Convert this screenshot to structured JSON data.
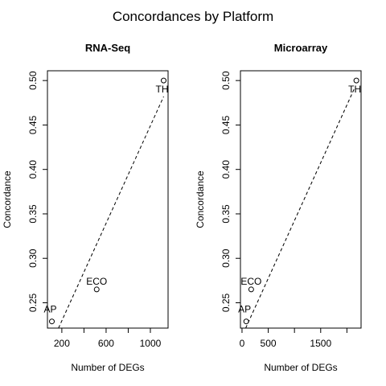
{
  "title": "Concordances by Platform",
  "chart_data": [
    {
      "type": "scatter",
      "title": "RNA-Seq",
      "xlabel": "Number of DEGs",
      "ylabel": "Concordance",
      "xlim": [
        70,
        1160
      ],
      "ylim": [
        0.2215,
        0.511
      ],
      "xticks": [
        200,
        400,
        600,
        800,
        1000
      ],
      "xtick_labels": [
        "200",
        "",
        "600",
        "",
        "1000"
      ],
      "yticks": [
        0.25,
        0.3,
        0.35,
        0.4,
        0.45,
        0.5
      ],
      "ytick_labels": [
        "0.25",
        "0.30",
        "0.35",
        "0.40",
        "0.45",
        "0.50"
      ],
      "grid": false,
      "points": [
        {
          "label": "AP",
          "x": 110,
          "y": 0.229
        },
        {
          "label": "ECO",
          "x": 515,
          "y": 0.265
        },
        {
          "label": "TH",
          "x": 1120,
          "y": 0.5
        }
      ],
      "fit_line": {
        "style": "dashed",
        "x": [
          170,
          1120
        ],
        "y": [
          0.2215,
          0.482
        ]
      }
    },
    {
      "type": "scatter",
      "title": "Microarray",
      "xlabel": "Number of DEGs",
      "ylabel": "Concordance",
      "xlim": [
        -30,
        2270
      ],
      "ylim": [
        0.2215,
        0.511
      ],
      "xticks": [
        0,
        500,
        1000,
        1500,
        2000
      ],
      "xtick_labels": [
        "0",
        "500",
        "",
        "1500",
        ""
      ],
      "yticks": [
        0.25,
        0.3,
        0.35,
        0.4,
        0.45,
        0.5
      ],
      "ytick_labels": [
        "0.25",
        "0.30",
        "0.35",
        "0.40",
        "0.45",
        "0.50"
      ],
      "grid": false,
      "points": [
        {
          "label": "AP",
          "x": 80,
          "y": 0.229
        },
        {
          "label": "ECO",
          "x": 175,
          "y": 0.265
        },
        {
          "label": "TH",
          "x": 2180,
          "y": 0.5
        }
      ],
      "fit_line": {
        "style": "dashed",
        "x": [
          70,
          2150
        ],
        "y": [
          0.2215,
          0.492
        ]
      }
    }
  ]
}
